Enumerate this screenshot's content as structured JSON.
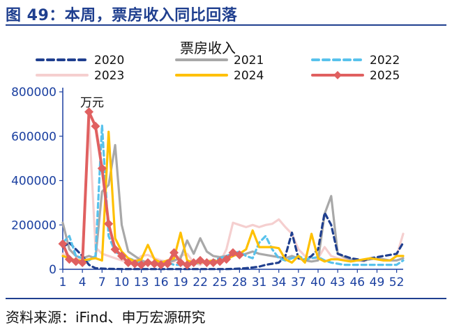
{
  "header": {
    "title": "图 49：本周，票房收入同比回落"
  },
  "footer": {
    "source": "资料来源：iFind、申万宏源研究"
  },
  "chart_data": {
    "type": "line",
    "title": "票房收入",
    "unit": "万元",
    "xlabel": "",
    "ylabel": "",
    "ylim": [
      0,
      800000
    ],
    "yticks": [
      0,
      200000,
      400000,
      600000,
      800000
    ],
    "xlim": [
      1,
      53
    ],
    "xticks": [
      1,
      4,
      7,
      10,
      13,
      16,
      19,
      22,
      25,
      28,
      31,
      34,
      37,
      40,
      43,
      46,
      49,
      52
    ],
    "grid": false,
    "legend_placement": "top",
    "series": [
      {
        "name": "2020",
        "color": "#1f3f8f",
        "style": "dashed",
        "x": [
          1,
          2,
          3,
          4,
          5,
          6,
          7,
          8,
          9,
          10,
          11,
          12,
          13,
          14,
          15,
          16,
          17,
          18,
          19,
          20,
          21,
          22,
          23,
          24,
          25,
          26,
          27,
          28,
          29,
          30,
          31,
          32,
          33,
          34,
          35,
          36,
          37,
          38,
          39,
          40,
          41,
          42,
          43,
          44,
          45,
          46,
          47,
          48,
          49,
          50,
          51,
          52,
          53
        ],
        "values": [
          100000,
          120000,
          90000,
          60000,
          20000,
          5000,
          3000,
          2000,
          1500,
          1000,
          1000,
          1000,
          1000,
          1000,
          1000,
          1000,
          1000,
          1000,
          1000,
          1000,
          1000,
          1000,
          1000,
          1000,
          1000,
          1000,
          2000,
          3000,
          5000,
          8000,
          12000,
          20000,
          25000,
          30000,
          60000,
          165000,
          50000,
          40000,
          60000,
          90000,
          255000,
          200000,
          70000,
          60000,
          50000,
          45000,
          40000,
          50000,
          55000,
          60000,
          65000,
          70000,
          120000
        ]
      },
      {
        "name": "2021",
        "color": "#a8a8a8",
        "style": "solid",
        "x": [
          1,
          2,
          3,
          4,
          5,
          6,
          7,
          8,
          9,
          10,
          11,
          12,
          13,
          14,
          15,
          16,
          17,
          18,
          19,
          20,
          21,
          22,
          23,
          24,
          25,
          26,
          27,
          28,
          29,
          30,
          31,
          32,
          33,
          34,
          35,
          36,
          37,
          38,
          39,
          40,
          41,
          42,
          43,
          44,
          45,
          46,
          47,
          48,
          49,
          50,
          51,
          52,
          53
        ],
        "values": [
          210000,
          90000,
          60000,
          50000,
          60000,
          50000,
          350000,
          380000,
          560000,
          200000,
          80000,
          60000,
          40000,
          30000,
          30000,
          35000,
          30000,
          40000,
          50000,
          130000,
          70000,
          140000,
          80000,
          60000,
          55000,
          60000,
          70000,
          60000,
          70000,
          80000,
          70000,
          65000,
          60000,
          55000,
          50000,
          60000,
          50000,
          40000,
          35000,
          40000,
          250000,
          330000,
          70000,
          55000,
          45000,
          40000,
          40000,
          45000,
          50000,
          45000,
          40000,
          40000,
          50000
        ]
      },
      {
        "name": "2022",
        "color": "#58c2ec",
        "style": "dashed",
        "x": [
          1,
          2,
          3,
          4,
          5,
          6,
          7,
          8,
          9,
          10,
          11,
          12,
          13,
          14,
          15,
          16,
          17,
          18,
          19,
          20,
          21,
          22,
          23,
          24,
          25,
          26,
          27,
          28,
          29,
          30,
          31,
          32,
          33,
          34,
          35,
          36,
          37,
          38,
          39,
          40,
          41,
          42,
          43,
          44,
          45,
          46,
          47,
          48,
          49,
          50,
          51,
          52,
          53
        ],
        "values": [
          120000,
          150000,
          60000,
          50000,
          40000,
          60000,
          650000,
          150000,
          80000,
          60000,
          50000,
          40000,
          30000,
          25000,
          20000,
          25000,
          30000,
          20000,
          20000,
          20000,
          25000,
          30000,
          35000,
          40000,
          50000,
          60000,
          70000,
          80000,
          60000,
          50000,
          120000,
          150000,
          90000,
          50000,
          40000,
          50000,
          60000,
          45000,
          50000,
          55000,
          40000,
          30000,
          25000,
          20000,
          20000,
          20000,
          20000,
          20000,
          20000,
          20000,
          20000,
          20000,
          40000
        ]
      },
      {
        "name": "2023",
        "color": "#f5cfcf",
        "style": "solid",
        "x": [
          1,
          2,
          3,
          4,
          5,
          6,
          7,
          8,
          9,
          10,
          11,
          12,
          13,
          14,
          15,
          16,
          17,
          18,
          19,
          20,
          21,
          22,
          23,
          24,
          25,
          26,
          27,
          28,
          29,
          30,
          31,
          32,
          33,
          34,
          35,
          36,
          37,
          38,
          39,
          40,
          41,
          42,
          43,
          44,
          45,
          46,
          47,
          48,
          49,
          50,
          51,
          52,
          53
        ],
        "values": [
          70000,
          50000,
          40000,
          60000,
          680000,
          100000,
          70000,
          60000,
          50000,
          40000,
          35000,
          35000,
          60000,
          65000,
          50000,
          40000,
          35000,
          35000,
          60000,
          70000,
          30000,
          20000,
          40000,
          35000,
          30000,
          90000,
          210000,
          200000,
          190000,
          200000,
          190000,
          200000,
          205000,
          225000,
          190000,
          160000,
          90000,
          60000,
          50000,
          50000,
          100000,
          60000,
          50000,
          45000,
          40000,
          40000,
          35000,
          50000,
          45000,
          40000,
          40000,
          60000,
          160000
        ]
      },
      {
        "name": "2024",
        "color": "#ffc000",
        "style": "solid",
        "x": [
          1,
          2,
          3,
          4,
          5,
          6,
          7,
          8,
          9,
          10,
          11,
          12,
          13,
          14,
          15,
          16,
          17,
          18,
          19,
          20,
          21,
          22,
          23,
          24,
          25,
          26,
          27,
          28,
          29,
          30,
          31,
          32,
          33,
          34,
          35,
          36,
          37,
          38,
          39,
          40,
          41,
          42,
          43,
          44,
          45,
          46,
          47,
          48,
          49,
          50,
          51,
          52,
          53
        ],
        "values": [
          60000,
          50000,
          40000,
          40000,
          45000,
          50000,
          40000,
          620000,
          140000,
          80000,
          50000,
          35000,
          45000,
          110000,
          45000,
          30000,
          40000,
          50000,
          165000,
          40000,
          30000,
          30000,
          35000,
          40000,
          35000,
          45000,
          60000,
          70000,
          90000,
          175000,
          100000,
          100000,
          100000,
          95000,
          45000,
          30000,
          60000,
          30000,
          160000,
          50000,
          35000,
          45000,
          45000,
          40000,
          35000,
          40000,
          45000,
          50000,
          45000,
          40000,
          40000,
          60000,
          60000
        ]
      },
      {
        "name": "2025",
        "color": "#e06060",
        "style": "marker",
        "x": [
          1,
          2,
          3,
          4,
          5,
          6,
          7,
          8,
          9,
          10,
          11,
          12,
          13,
          14,
          15,
          16,
          17,
          18,
          19,
          20,
          21,
          22,
          23,
          24,
          25,
          26,
          27,
          28
        ],
        "values": [
          115000,
          45000,
          35000,
          30000,
          710000,
          645000,
          455000,
          205000,
          90000,
          60000,
          30000,
          25000,
          20000,
          30000,
          25000,
          20000,
          25000,
          75000,
          30000,
          20000,
          30000,
          40000,
          30000,
          30000,
          35000,
          45000,
          75000,
          65000
        ]
      }
    ]
  }
}
